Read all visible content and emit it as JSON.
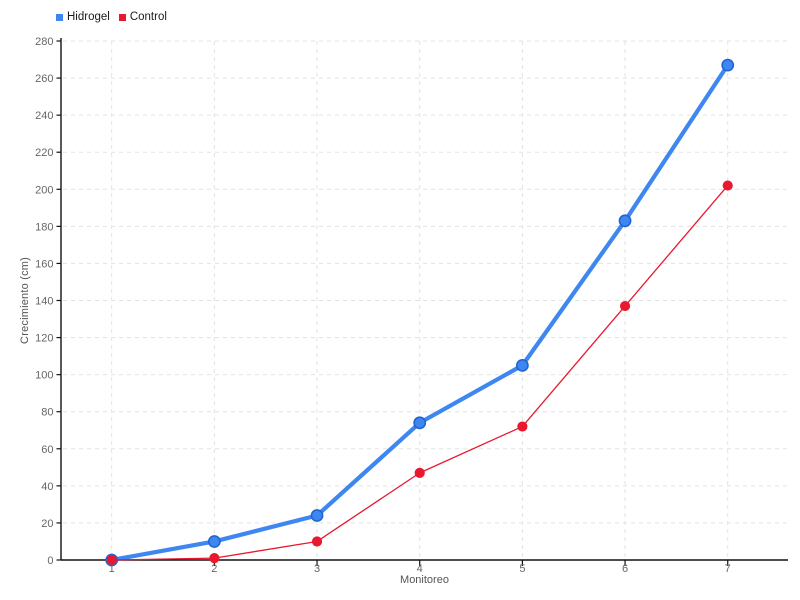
{
  "legend": {
    "position": "top-left"
  },
  "axes": {
    "x_title": "Monitoreo",
    "y_title": "Crecimiento (cm)"
  },
  "chart_data": {
    "type": "line",
    "x": [
      1,
      2,
      3,
      4,
      5,
      6,
      7
    ],
    "xticks": [
      1,
      2,
      3,
      4,
      5,
      6,
      7
    ],
    "yticks": [
      0,
      20,
      40,
      60,
      80,
      100,
      120,
      140,
      160,
      180,
      200,
      220,
      240,
      260,
      280
    ],
    "series": [
      {
        "name": "Hidrogel",
        "color": "#3e87f0",
        "marker_stroke": "#1f66d2",
        "line_width": 4.2,
        "marker_radius": 5.6,
        "values": [
          0,
          10,
          24,
          74,
          105,
          183,
          267
        ]
      },
      {
        "name": "Control",
        "color": "#e8192f",
        "marker_stroke": "#e8192f",
        "line_width": 1.3,
        "marker_radius": 4.3,
        "values": [
          0,
          1,
          10,
          47,
          72,
          137,
          202
        ]
      }
    ],
    "title": "",
    "xlabel": "Monitoreo",
    "ylabel": "Crecimiento (cm)",
    "ylim": [
      0,
      280
    ],
    "ytick_step": 20,
    "grid": true,
    "grid_style": "dashed",
    "legend_position": "top-left"
  },
  "colors": {
    "background": "#ffffff",
    "grid": "#e3e3e3",
    "axis": "#111111",
    "tick_label": "#666666",
    "axis_title": "#555555",
    "legend_text": "#1c1c1c"
  }
}
